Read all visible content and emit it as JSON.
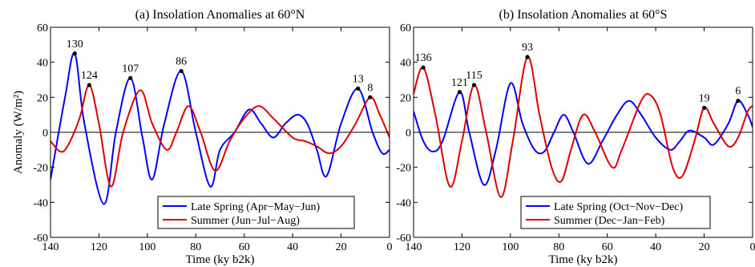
{
  "chart_data": [
    {
      "type": "line",
      "title": "(a) Insolation Anomalies at 60°N",
      "xlabel": "Time (ky b2k)",
      "ylabel": "Anomaly (W/m²)",
      "xlim": [
        140,
        0
      ],
      "ylim": [
        -60,
        60
      ],
      "x_reversed": true,
      "xticks": [
        140,
        120,
        100,
        80,
        60,
        40,
        20,
        0
      ],
      "yticks": [
        -60,
        -40,
        -20,
        0,
        20,
        40,
        60
      ],
      "legend_position": "bottom-right",
      "series": [
        {
          "name": "Late Spring (Apr−May−Jun)",
          "color": "#0000ff",
          "points": [
            [
              140,
              -27
            ],
            [
              134,
              20
            ],
            [
              130,
              45
            ],
            [
              126,
              5
            ],
            [
              118,
              -41
            ],
            [
              113,
              0
            ],
            [
              107,
              31
            ],
            [
              102,
              -3
            ],
            [
              98,
              -27
            ],
            [
              93,
              5
            ],
            [
              86,
              35
            ],
            [
              80,
              0
            ],
            [
              74,
              -31
            ],
            [
              70,
              -10
            ],
            [
              64,
              0
            ],
            [
              58,
              13
            ],
            [
              53,
              5
            ],
            [
              48,
              -3
            ],
            [
              43,
              5
            ],
            [
              38,
              10
            ],
            [
              34,
              5
            ],
            [
              30,
              -10
            ],
            [
              26,
              -25
            ],
            [
              20,
              5
            ],
            [
              13,
              25
            ],
            [
              7,
              0
            ],
            [
              3,
              -12
            ],
            [
              0,
              -10
            ]
          ]
        },
        {
          "name": "Summer (Jun−Jul−Aug)",
          "color": "#dd0000",
          "points": [
            [
              140,
              -5
            ],
            [
              136,
              -11
            ],
            [
              133,
              -8
            ],
            [
              128,
              8
            ],
            [
              124,
              27
            ],
            [
              120,
              5
            ],
            [
              115,
              -31
            ],
            [
              110,
              0
            ],
            [
              103,
              24
            ],
            [
              98,
              5
            ],
            [
              92,
              -10
            ],
            [
              88,
              0
            ],
            [
              83,
              15
            ],
            [
              78,
              0
            ],
            [
              72,
              -22
            ],
            [
              66,
              -5
            ],
            [
              60,
              8
            ],
            [
              54,
              15
            ],
            [
              48,
              8
            ],
            [
              40,
              -3
            ],
            [
              35,
              -5
            ],
            [
              30,
              -8
            ],
            [
              25,
              -12
            ],
            [
              20,
              -8
            ],
            [
              14,
              5
            ],
            [
              8,
              20
            ],
            [
              4,
              10
            ],
            [
              0,
              -3
            ]
          ]
        }
      ],
      "annotations": [
        {
          "text": "130",
          "x": 130,
          "y": 45
        },
        {
          "text": "124",
          "x": 124,
          "y": 27
        },
        {
          "text": "107",
          "x": 107,
          "y": 31
        },
        {
          "text": "86",
          "x": 86,
          "y": 35
        },
        {
          "text": "13",
          "x": 13,
          "y": 25
        },
        {
          "text": "8",
          "x": 8,
          "y": 20
        }
      ]
    },
    {
      "type": "line",
      "title": "(b) Insolation Anomalies at 60°S",
      "xlabel": "Time (ky b2k)",
      "ylabel": "",
      "xlim": [
        140,
        0
      ],
      "ylim": [
        -60,
        60
      ],
      "x_reversed": true,
      "xticks": [
        140,
        120,
        100,
        80,
        60,
        40,
        20,
        0
      ],
      "yticks": [
        -60,
        -40,
        -20,
        0,
        20,
        40,
        60
      ],
      "legend_position": "bottom-right",
      "series": [
        {
          "name": "Late Spring (Oct−Nov−Dec)",
          "color": "#0000ff",
          "points": [
            [
              140,
              12
            ],
            [
              136,
              -5
            ],
            [
              132,
              -11
            ],
            [
              128,
              -5
            ],
            [
              121,
              23
            ],
            [
              117,
              0
            ],
            [
              111,
              -30
            ],
            [
              106,
              -10
            ],
            [
              100,
              28
            ],
            [
              95,
              5
            ],
            [
              90,
              -10
            ],
            [
              86,
              -11
            ],
            [
              82,
              0
            ],
            [
              78,
              10
            ],
            [
              74,
              0
            ],
            [
              68,
              -18
            ],
            [
              62,
              -5
            ],
            [
              56,
              10
            ],
            [
              51,
              18
            ],
            [
              46,
              10
            ],
            [
              40,
              -3
            ],
            [
              34,
              -10
            ],
            [
              30,
              -5
            ],
            [
              26,
              1
            ],
            [
              20,
              -3
            ],
            [
              16,
              -7
            ],
            [
              10,
              5
            ],
            [
              6,
              18
            ],
            [
              2,
              10
            ],
            [
              0,
              3
            ]
          ]
        },
        {
          "name": "Summer (Dec−Jan−Feb)",
          "color": "#dd0000",
          "points": [
            [
              140,
              22
            ],
            [
              136,
              37
            ],
            [
              131,
              10
            ],
            [
              125,
              -31
            ],
            [
              120,
              -5
            ],
            [
              115,
              27
            ],
            [
              110,
              0
            ],
            [
              104,
              -37
            ],
            [
              99,
              -5
            ],
            [
              93,
              43
            ],
            [
              88,
              10
            ],
            [
              83,
              -20
            ],
            [
              79,
              -28
            ],
            [
              75,
              -10
            ],
            [
              70,
              10
            ],
            [
              65,
              0
            ],
            [
              58,
              -20
            ],
            [
              54,
              -10
            ],
            [
              46,
              18
            ],
            [
              42,
              21
            ],
            [
              38,
              10
            ],
            [
              33,
              -20
            ],
            [
              29,
              -25
            ],
            [
              24,
              -5
            ],
            [
              20,
              14
            ],
            [
              16,
              5
            ],
            [
              10,
              -8
            ],
            [
              6,
              -3
            ],
            [
              2,
              12
            ],
            [
              0,
              15
            ]
          ]
        }
      ],
      "annotations": [
        {
          "text": "136",
          "x": 136,
          "y": 37
        },
        {
          "text": "121",
          "x": 121,
          "y": 23
        },
        {
          "text": "115",
          "x": 115,
          "y": 27
        },
        {
          "text": "93",
          "x": 93,
          "y": 43
        },
        {
          "text": "19",
          "x": 20,
          "y": 14
        },
        {
          "text": "6",
          "x": 6,
          "y": 18
        }
      ]
    }
  ]
}
